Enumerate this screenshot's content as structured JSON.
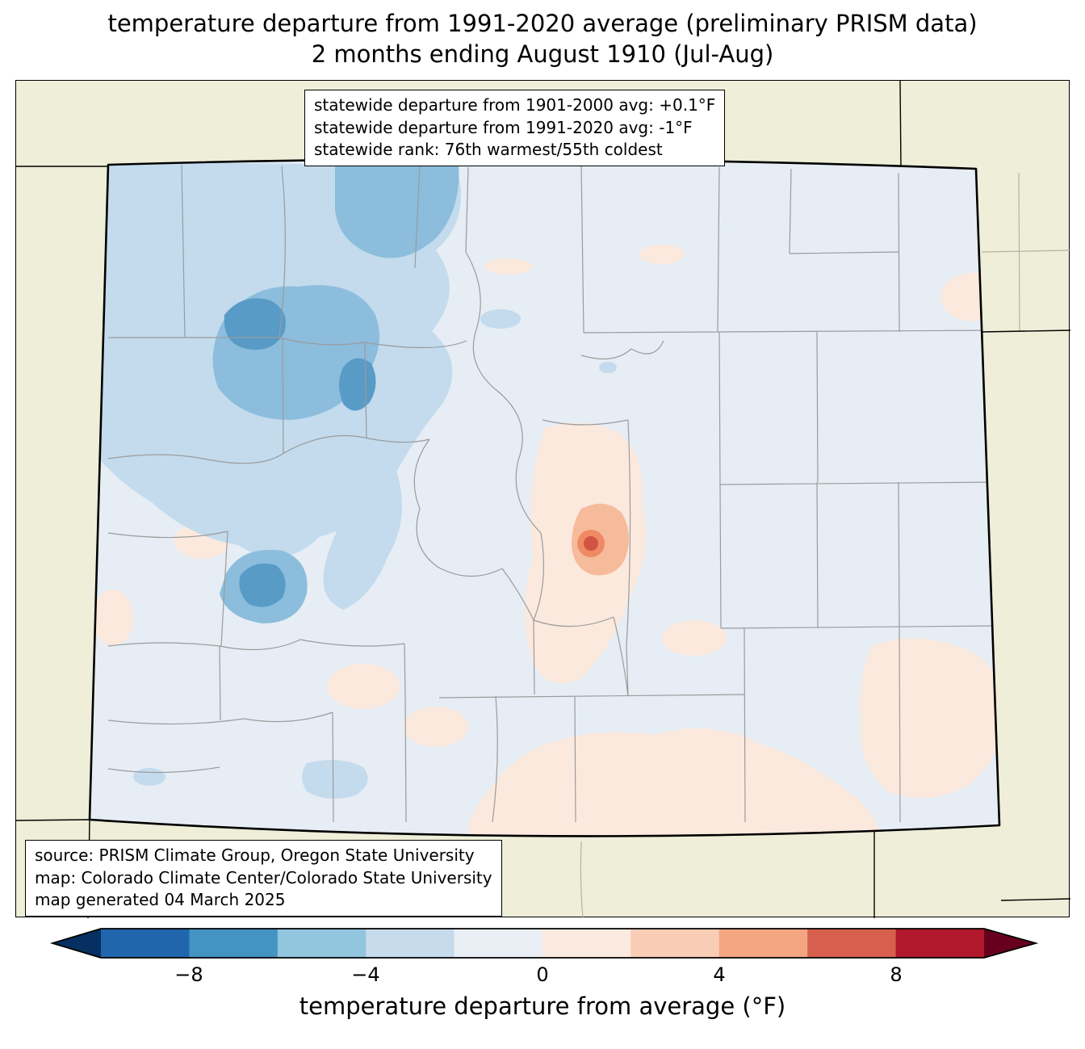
{
  "title": {
    "line1": "temperature departure from 1991-2020 average (preliminary PRISM data)",
    "line2": "2 months ending August 1910 (Jul-Aug)"
  },
  "stats_box": {
    "line1": "statewide departure from 1901-2000 avg: +0.1°F",
    "line2": "statewide departure from 1991-2020 avg: -1°F",
    "line3": "statewide rank: 76th warmest/55th coldest"
  },
  "source_box": {
    "line1": "source: PRISM Climate Group, Oregon State University",
    "line2": "map: Colorado Climate Center/Colorado State University",
    "line3": "map generated 04 March 2025"
  },
  "colorbar": {
    "label": "temperature departure from average (°F)",
    "ticks": [
      "−8",
      "−4",
      "0",
      "4",
      "8"
    ],
    "tick_values": [
      -8,
      -4,
      0,
      4,
      8
    ],
    "range": [
      -10,
      10
    ],
    "segment_colors": [
      "#2166ac",
      "#4393c3",
      "#92c5de",
      "#c6dbec",
      "#e9eff4",
      "#fbeadf",
      "#f9cdb5",
      "#f4a582",
      "#d6604d",
      "#b2182b"
    ],
    "arrow_left_color": "#053061",
    "arrow_right_color": "#67001f"
  },
  "map_colors": {
    "background_land": "#eeeed9",
    "state_base": "#e6edf4",
    "cool_light": "#c3dbed",
    "cool_medium": "#8cbddc",
    "cool_dark": "#579bc6",
    "warm_light": "#fbe9de",
    "warm_medium": "#f6bb9b",
    "warm_strong": "#ef8a64",
    "warm_core": "#d05343",
    "county_border": "#9b9b9b",
    "state_border": "#000000"
  }
}
